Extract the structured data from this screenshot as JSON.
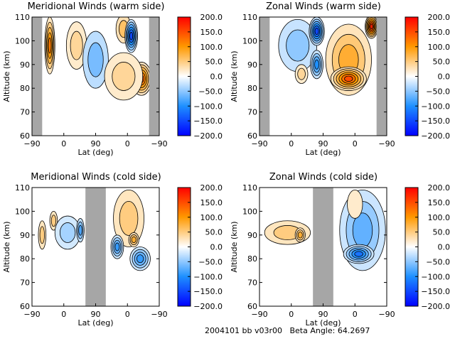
{
  "footer": {
    "text": "2004101 bb v03r00   Beta Angle: 64.2697"
  },
  "colors": {
    "gap": "#a6a6a6",
    "frame": "#000000",
    "scale": [
      "#0000ff",
      "#1e90ff",
      "#ffffff",
      "#ff9900",
      "#ff0000"
    ]
  },
  "chart_data": [
    {
      "type": "heatmap",
      "title": "Meridional Winds (warm side)",
      "xlabel": "Lat (deg)",
      "ylabel": "Altitude (km)",
      "xticks": [
        "-90",
        "0",
        "90",
        "0",
        "-90"
      ],
      "yticks": [
        "60",
        "70",
        "80",
        "90",
        "100",
        "110"
      ],
      "ylim": [
        60,
        110
      ],
      "colorbar": {
        "ticks": [
          "200.0",
          "150.0",
          "100.0",
          "50.0",
          "0.0",
          "-50.0",
          "-100.0",
          "-150.0",
          "-200.0"
        ],
        "range": [
          -200,
          200
        ]
      },
      "gaps": [
        [
          0,
          0.08
        ],
        [
          0.92,
          1.0
        ]
      ],
      "features": [
        {
          "cx": 0.14,
          "cy": 98,
          "rx": 0.04,
          "ry": 12,
          "v": 120
        },
        {
          "cx": 0.35,
          "cy": 98,
          "rx": 0.08,
          "ry": 10,
          "v": 40
        },
        {
          "cx": 0.5,
          "cy": 92,
          "rx": 0.1,
          "ry": 12,
          "v": -60
        },
        {
          "cx": 0.63,
          "cy": 86,
          "rx": 0.05,
          "ry": 6,
          "v": 90
        },
        {
          "cx": 0.72,
          "cy": 105,
          "rx": 0.06,
          "ry": 6,
          "v": 60
        },
        {
          "cx": 0.78,
          "cy": 102,
          "rx": 0.05,
          "ry": 7,
          "v": -150
        },
        {
          "cx": 0.86,
          "cy": 84,
          "rx": 0.08,
          "ry": 7,
          "v": 140
        },
        {
          "cx": 0.72,
          "cy": 85,
          "rx": 0.15,
          "ry": 10,
          "v": 40
        }
      ]
    },
    {
      "type": "heatmap",
      "title": "Zonal Winds (warm side)",
      "xlabel": "Lat (deg)",
      "ylabel": "Altitude (km)",
      "xticks": [
        "-90",
        "0",
        "90",
        "0",
        "-90"
      ],
      "yticks": [
        "60",
        "70",
        "80",
        "90",
        "100",
        "110"
      ],
      "ylim": [
        60,
        110
      ],
      "colorbar": {
        "ticks": [
          "200.0",
          "150.0",
          "100.0",
          "50.0",
          "0.0",
          "-50.0",
          "-100.0",
          "-150.0",
          "-200.0"
        ],
        "range": [
          -200,
          200
        ]
      },
      "gaps": [
        [
          0,
          0.08
        ],
        [
          0.92,
          1.0
        ]
      ],
      "features": [
        {
          "cx": 0.3,
          "cy": 98,
          "rx": 0.15,
          "ry": 11,
          "v": -50
        },
        {
          "cx": 0.45,
          "cy": 104,
          "rx": 0.06,
          "ry": 6,
          "v": -150
        },
        {
          "cx": 0.45,
          "cy": 90,
          "rx": 0.05,
          "ry": 6,
          "v": -100
        },
        {
          "cx": 0.33,
          "cy": 86,
          "rx": 0.05,
          "ry": 4,
          "v": 40
        },
        {
          "cx": 0.7,
          "cy": 92,
          "rx": 0.18,
          "ry": 15,
          "v": 80
        },
        {
          "cx": 0.7,
          "cy": 84,
          "rx": 0.14,
          "ry": 5,
          "v": 150
        },
        {
          "cx": 0.88,
          "cy": 106,
          "rx": 0.05,
          "ry": 5,
          "v": 180
        }
      ]
    },
    {
      "type": "heatmap",
      "title": "Meridional Winds (cold side)",
      "xlabel": "Lat (deg)",
      "ylabel": "Altitude (km)",
      "xticks": [
        "-90",
        "0",
        "90",
        "0",
        "-90"
      ],
      "yticks": [
        "60",
        "70",
        "80",
        "90",
        "100",
        "110"
      ],
      "ylim": [
        60,
        110
      ],
      "colorbar": {
        "ticks": [
          "200.0",
          "150.0",
          "100.0",
          "50.0",
          "0.0",
          "-50.0",
          "-100.0",
          "-150.0",
          "-200.0"
        ],
        "range": [
          -200,
          200
        ]
      },
      "gaps": [
        [
          0.42,
          0.58
        ]
      ],
      "features": [
        {
          "cx": 0.08,
          "cy": 90,
          "rx": 0.03,
          "ry": 6,
          "v": 50
        },
        {
          "cx": 0.17,
          "cy": 96,
          "rx": 0.03,
          "ry": 4,
          "v": 50
        },
        {
          "cx": 0.28,
          "cy": 91,
          "rx": 0.1,
          "ry": 7,
          "v": -40
        },
        {
          "cx": 0.38,
          "cy": 92,
          "rx": 0.03,
          "ry": 5,
          "v": -80
        },
        {
          "cx": 0.76,
          "cy": 97,
          "rx": 0.12,
          "ry": 12,
          "v": 50
        },
        {
          "cx": 0.67,
          "cy": 85,
          "rx": 0.05,
          "ry": 5,
          "v": -90
        },
        {
          "cx": 0.85,
          "cy": 80,
          "rx": 0.08,
          "ry": 5,
          "v": -90
        },
        {
          "cx": 0.8,
          "cy": 88,
          "rx": 0.04,
          "ry": 3,
          "v": 80
        }
      ]
    },
    {
      "type": "heatmap",
      "title": "Zonal Winds (cold side)",
      "xlabel": "Lat (deg)",
      "ylabel": "Altitude (km)",
      "xticks": [
        "-90",
        "0",
        "90",
        "0",
        "-90"
      ],
      "yticks": [
        "60",
        "70",
        "80",
        "90",
        "100",
        "110"
      ],
      "ylim": [
        60,
        110
      ],
      "colorbar": {
        "ticks": [
          "200.0",
          "150.0",
          "100.0",
          "50.0",
          "0.0",
          "-50.0",
          "-100.0",
          "-150.0",
          "-200.0"
        ],
        "range": [
          -200,
          200
        ]
      },
      "gaps": [
        [
          0.42,
          0.58
        ]
      ],
      "features": [
        {
          "cx": 0.22,
          "cy": 91,
          "rx": 0.18,
          "ry": 5,
          "v": 50
        },
        {
          "cx": 0.32,
          "cy": 90,
          "rx": 0.04,
          "ry": 3,
          "v": 80
        },
        {
          "cx": 0.81,
          "cy": 92,
          "rx": 0.18,
          "ry": 17,
          "v": -70
        },
        {
          "cx": 0.78,
          "cy": 82,
          "rx": 0.12,
          "ry": 4,
          "v": -120
        },
        {
          "cx": 0.75,
          "cy": 103,
          "rx": 0.06,
          "ry": 6,
          "v": 20
        }
      ]
    }
  ]
}
